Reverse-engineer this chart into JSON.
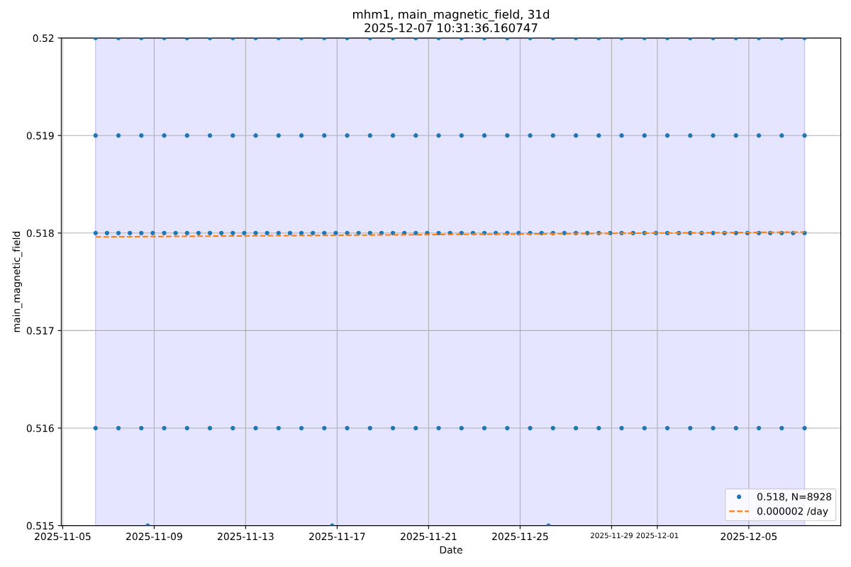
{
  "chart_data": {
    "type": "scatter",
    "title": "mhm1, main_magnetic_field, 31d\n2025-12-07 10:31:36.160747",
    "xlabel": "Date",
    "ylabel": "main_magnetic_field",
    "xlim": [
      "2025-11-04T22:30",
      "2025-12-09T00:30"
    ],
    "xticks": [
      "2025-11-05",
      "2025-11-09",
      "2025-11-13",
      "2025-11-17",
      "2025-11-21",
      "2025-11-25",
      "2025-11-29",
      "2025-12-01",
      "2025-12-05"
    ],
    "ylim": [
      0.515,
      0.52
    ],
    "yticks": [
      0.515,
      0.516,
      0.517,
      0.518,
      0.519,
      0.52
    ],
    "grid": true,
    "legend": "lower right",
    "bands": [
      {
        "axis": "x",
        "from": "2025-11-06T10:31",
        "to": "2025-12-07T10:31",
        "color": "#e5e5ff"
      }
    ],
    "series": [
      {
        "name": "0.518, N=8928",
        "type": "scatter",
        "marker": "circle",
        "color": "#1f77b4",
        "x": [
          "2025-11-06T10:31",
          "2025-11-06T22:31",
          "2025-11-07T10:31",
          "2025-11-07T22:31",
          "2025-11-08T10:31",
          "2025-11-08T22:31",
          "2025-11-09T10:31",
          "2025-11-09T22:31",
          "2025-11-10T10:31",
          "2025-11-10T22:31",
          "2025-11-11T10:31",
          "2025-11-11T22:31",
          "2025-11-12T10:31",
          "2025-11-12T22:31",
          "2025-11-13T10:31",
          "2025-11-13T22:31",
          "2025-11-14T10:31",
          "2025-11-14T22:31",
          "2025-11-15T10:31",
          "2025-11-15T22:31",
          "2025-11-16T10:31",
          "2025-11-16T22:31",
          "2025-11-17T10:31",
          "2025-11-17T22:31",
          "2025-11-18T10:31",
          "2025-11-18T22:31",
          "2025-11-19T10:31",
          "2025-11-19T22:31",
          "2025-11-20T10:31",
          "2025-11-20T22:31",
          "2025-11-21T10:31",
          "2025-11-21T22:31",
          "2025-11-22T10:31",
          "2025-11-22T22:31",
          "2025-11-23T10:31",
          "2025-11-23T22:31",
          "2025-11-24T10:31",
          "2025-11-24T22:31",
          "2025-11-25T10:31",
          "2025-11-25T22:31",
          "2025-11-26T10:31",
          "2025-11-26T22:31",
          "2025-11-27T10:31",
          "2025-11-27T22:31",
          "2025-11-28T10:31",
          "2025-11-28T22:31",
          "2025-11-29T10:31",
          "2025-11-29T22:31",
          "2025-11-30T10:31",
          "2025-11-30T22:31",
          "2025-12-01T10:31",
          "2025-12-01T22:31",
          "2025-12-02T10:31",
          "2025-12-02T22:31",
          "2025-12-03T10:31",
          "2025-12-03T22:31",
          "2025-12-04T10:31",
          "2025-12-04T22:31",
          "2025-12-05T10:31",
          "2025-12-05T22:31",
          "2025-12-06T10:31",
          "2025-12-06T22:31",
          "2025-12-07T10:31",
          "2025-11-06T10:31",
          "2025-11-07T10:31",
          "2025-11-08T10:31",
          "2025-11-09T10:31",
          "2025-11-10T10:31",
          "2025-11-11T10:31",
          "2025-11-12T10:31",
          "2025-11-13T10:31",
          "2025-11-14T10:31",
          "2025-11-15T10:31",
          "2025-11-16T10:31",
          "2025-11-17T10:31",
          "2025-11-18T10:31",
          "2025-11-19T10:31",
          "2025-11-20T10:31",
          "2025-11-21T10:31",
          "2025-11-22T10:31",
          "2025-11-23T10:31",
          "2025-11-24T10:31",
          "2025-11-25T10:31",
          "2025-11-26T10:31",
          "2025-11-27T10:31",
          "2025-11-28T10:31",
          "2025-11-29T10:31",
          "2025-11-30T10:31",
          "2025-12-01T10:31",
          "2025-12-02T10:31",
          "2025-12-03T10:31",
          "2025-12-04T10:31",
          "2025-12-05T10:31",
          "2025-12-06T10:31",
          "2025-12-07T10:31",
          "2025-11-06T10:31",
          "2025-11-07T10:31",
          "2025-11-08T10:31",
          "2025-11-09T10:31",
          "2025-11-10T10:31",
          "2025-11-11T10:31",
          "2025-11-12T10:31",
          "2025-11-13T10:31",
          "2025-11-14T10:31",
          "2025-11-15T10:31",
          "2025-11-16T10:31",
          "2025-11-17T10:31",
          "2025-11-18T10:31",
          "2025-11-19T10:31",
          "2025-11-20T10:31",
          "2025-11-21T10:31",
          "2025-11-22T10:31",
          "2025-11-23T10:31",
          "2025-11-24T10:31",
          "2025-11-25T10:31",
          "2025-11-26T10:31",
          "2025-11-27T10:31",
          "2025-11-28T10:31",
          "2025-11-29T10:31",
          "2025-11-30T10:31",
          "2025-12-01T10:31",
          "2025-12-02T10:31",
          "2025-12-03T10:31",
          "2025-12-04T10:31",
          "2025-12-05T10:31",
          "2025-12-06T10:31",
          "2025-12-07T10:31",
          "2025-11-06T10:31",
          "2025-11-07T10:31",
          "2025-11-08T10:31",
          "2025-11-09T10:31",
          "2025-11-10T10:31",
          "2025-11-11T10:31",
          "2025-11-12T10:31",
          "2025-11-13T10:31",
          "2025-11-14T10:31",
          "2025-11-15T10:31",
          "2025-11-16T10:31",
          "2025-11-17T10:31",
          "2025-11-18T10:31",
          "2025-11-19T10:31",
          "2025-11-20T10:31",
          "2025-11-21T10:31",
          "2025-11-22T10:31",
          "2025-11-23T10:31",
          "2025-11-24T10:31",
          "2025-11-25T10:31",
          "2025-11-26T10:31",
          "2025-11-27T10:31",
          "2025-11-28T10:31",
          "2025-11-29T10:31",
          "2025-11-30T10:31",
          "2025-12-01T10:31",
          "2025-12-02T10:31",
          "2025-12-03T10:31",
          "2025-12-04T10:31",
          "2025-12-05T10:31",
          "2025-12-06T10:31",
          "2025-12-07T10:31",
          "2025-11-08T17:15",
          "2025-11-16T18:45",
          "2025-11-26T05:45"
        ],
        "values": [
          0.518,
          0.518,
          0.518,
          0.518,
          0.518,
          0.518,
          0.518,
          0.518,
          0.518,
          0.518,
          0.518,
          0.518,
          0.518,
          0.518,
          0.518,
          0.518,
          0.518,
          0.518,
          0.518,
          0.518,
          0.518,
          0.518,
          0.518,
          0.518,
          0.518,
          0.518,
          0.518,
          0.518,
          0.518,
          0.518,
          0.518,
          0.518,
          0.518,
          0.518,
          0.518,
          0.518,
          0.518,
          0.518,
          0.518,
          0.518,
          0.518,
          0.518,
          0.518,
          0.518,
          0.518,
          0.518,
          0.518,
          0.518,
          0.518,
          0.518,
          0.518,
          0.518,
          0.518,
          0.518,
          0.518,
          0.518,
          0.518,
          0.518,
          0.518,
          0.518,
          0.518,
          0.518,
          0.518,
          0.519,
          0.519,
          0.519,
          0.519,
          0.519,
          0.519,
          0.519,
          0.519,
          0.519,
          0.519,
          0.519,
          0.519,
          0.519,
          0.519,
          0.519,
          0.519,
          0.519,
          0.519,
          0.519,
          0.519,
          0.519,
          0.519,
          0.519,
          0.519,
          0.519,
          0.519,
          0.519,
          0.519,
          0.519,
          0.519,
          0.519,
          0.519,
          0.52,
          0.52,
          0.52,
          0.52,
          0.52,
          0.52,
          0.52,
          0.52,
          0.52,
          0.52,
          0.52,
          0.52,
          0.52,
          0.52,
          0.52,
          0.52,
          0.52,
          0.52,
          0.52,
          0.52,
          0.52,
          0.52,
          0.52,
          0.52,
          0.52,
          0.52,
          0.52,
          0.52,
          0.52,
          0.52,
          0.52,
          0.52,
          0.516,
          0.516,
          0.516,
          0.516,
          0.516,
          0.516,
          0.516,
          0.516,
          0.516,
          0.516,
          0.516,
          0.516,
          0.516,
          0.516,
          0.516,
          0.516,
          0.516,
          0.516,
          0.516,
          0.516,
          0.516,
          0.516,
          0.516,
          0.516,
          0.516,
          0.516,
          0.516,
          0.516,
          0.516,
          0.516,
          0.516,
          0.516,
          0.515,
          0.515,
          0.515
        ]
      },
      {
        "name": "0.000002 /day",
        "type": "line",
        "line_style": "dashed",
        "color": "#ff7f0e",
        "x": [
          "2025-11-06T10:31",
          "2025-12-07T10:31"
        ],
        "values": [
          0.51796,
          0.51801
        ]
      }
    ]
  }
}
